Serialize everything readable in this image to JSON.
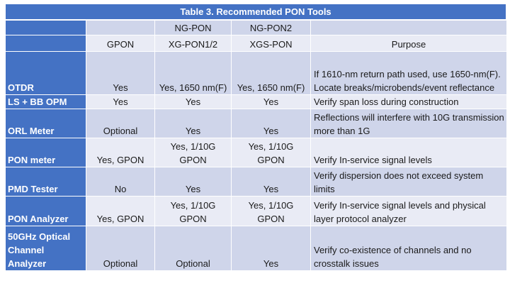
{
  "table": {
    "title": "Table 3. Recommended PON Tools",
    "header_top": [
      "",
      "",
      "NG-PON",
      "NG-PON2",
      ""
    ],
    "header_bottom": [
      "",
      "GPON",
      "XG-PON1/2",
      "XGS-PON",
      "Purpose"
    ],
    "rows": [
      {
        "tool": "OTDR",
        "gpon": "Yes",
        "xgpon": "Yes, 1650 nm(F)",
        "xgspon": "Yes, 1650 nm(F)",
        "purpose": "If 1610-nm return path used, use 1650-nm(F). Locate breaks/microbends/event reflectance"
      },
      {
        "tool": "LS + BB OPM",
        "gpon": "Yes",
        "xgpon": "Yes",
        "xgspon": "Yes",
        "purpose": "Verify span loss during construction"
      },
      {
        "tool": "ORL Meter",
        "gpon": "Optional",
        "xgpon": "Yes",
        "xgspon": "Yes",
        "purpose": "Reflections will interfere with 10G transmission more than 1G"
      },
      {
        "tool": "PON meter",
        "gpon": "Yes, GPON",
        "xgpon": "Yes, 1/10G GPON",
        "xgspon": "Yes, 1/10G GPON",
        "purpose": "Verify In-service signal levels"
      },
      {
        "tool": "PMD Tester",
        "gpon": "No",
        "xgpon": "Yes",
        "xgspon": "Yes",
        "purpose": "Verify dispersion does not exceed system limits"
      },
      {
        "tool": "PON Analyzer",
        "gpon": "Yes, GPON",
        "xgpon": "Yes, 1/10G GPON",
        "xgspon": "Yes, 1/10G GPON",
        "purpose": "Verify In-service signal levels and physical layer protocol analyzer"
      },
      {
        "tool": "50GHz Optical Channel Analyzer",
        "gpon": "Optional",
        "xgpon": "Optional",
        "xgspon": "Yes",
        "purpose": "Verify co-existence of channels and no crosstalk issues"
      }
    ]
  },
  "colors": {
    "header_blue": "#4472c4",
    "row_dark": "#cfd5ea",
    "row_light": "#e9ebf5"
  }
}
